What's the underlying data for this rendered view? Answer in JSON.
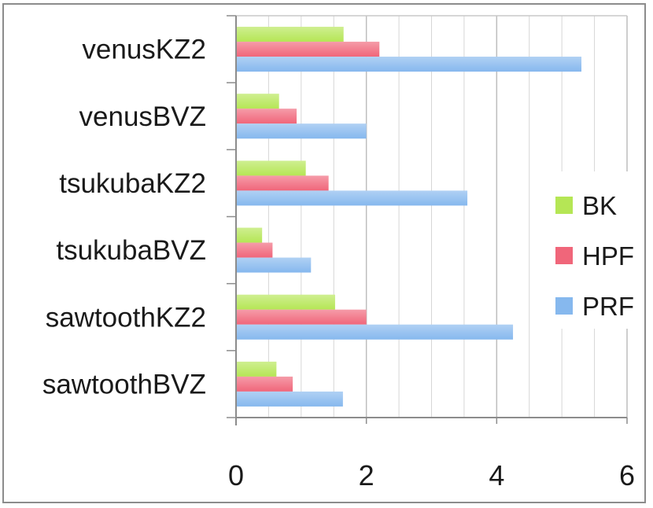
{
  "chart_data": {
    "type": "bar",
    "orientation": "horizontal",
    "categories": [
      "venusKZ2",
      "venusBVZ",
      "tsukubaKZ2",
      "tsukubaBVZ",
      "sawtoothKZ2",
      "sawtoothBVZ"
    ],
    "series": [
      {
        "name": "BK",
        "color": "#b5e655",
        "values": [
          1.65,
          0.66,
          1.07,
          0.4,
          1.52,
          0.62
        ]
      },
      {
        "name": "HPF",
        "color": "#f0667a",
        "values": [
          2.2,
          0.93,
          1.42,
          0.56,
          2.0,
          0.87
        ]
      },
      {
        "name": "PRF",
        "color": "#86b8ee",
        "values": [
          5.3,
          2.0,
          3.55,
          1.15,
          4.25,
          1.64
        ]
      }
    ],
    "xlim": [
      0,
      6
    ],
    "xticks": [
      "0",
      "2",
      "4",
      "6"
    ],
    "grid": true,
    "legend_position": "right",
    "title": "",
    "xlabel": "",
    "ylabel": ""
  }
}
